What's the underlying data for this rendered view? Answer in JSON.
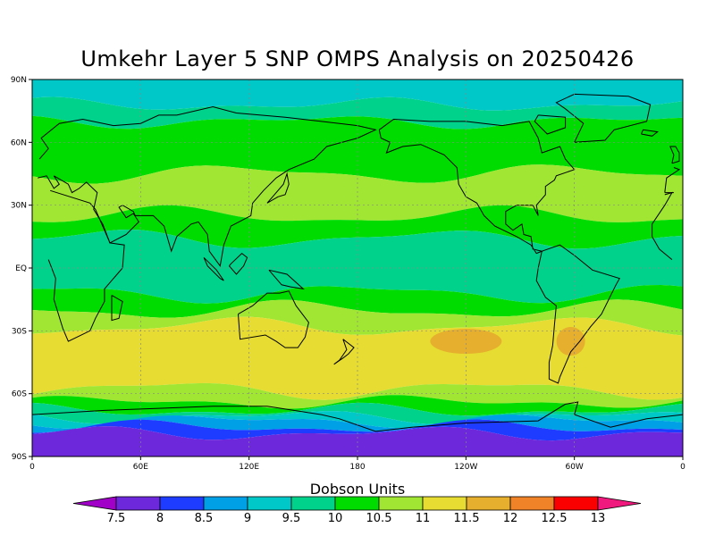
{
  "title": "Umkehr Layer 5 SNP OMPS Analysis on 20250426",
  "colorbar": {
    "title": "Dobson Units",
    "ticks": [
      "7.5",
      "8",
      "8.5",
      "9",
      "9.5",
      "10",
      "10.5",
      "11",
      "11.5",
      "12",
      "12.5",
      "13"
    ],
    "colors": [
      "#a000c8",
      "#6e28dc",
      "#1e3cff",
      "#00a0e6",
      "#00c8c8",
      "#00d28c",
      "#00dc00",
      "#a0e632",
      "#e6dc32",
      "#e6af2d",
      "#f08228",
      "#fa0000",
      "#f0197d"
    ]
  },
  "chart_data": {
    "type": "heatmap",
    "title": "Umkehr Layer 5 SNP OMPS Analysis on 20250426",
    "units": "Dobson Units",
    "x_ticks": [
      "0",
      "60E",
      "120E",
      "180",
      "120W",
      "60W",
      "0"
    ],
    "y_ticks": [
      "90N",
      "60N",
      "30N",
      "EQ",
      "30S",
      "60S",
      "90S"
    ],
    "xlim": [
      0,
      360
    ],
    "ylim": [
      -90,
      90
    ],
    "grid": true,
    "levels": [
      7.5,
      8,
      8.5,
      9,
      9.5,
      10,
      10.5,
      11,
      11.5,
      12,
      12.5,
      13
    ],
    "zonal_bands": [
      {
        "lat": [
          78,
          90
        ],
        "value": 9
      },
      {
        "lat": [
          70,
          78
        ],
        "value": 9.5
      },
      {
        "lat": [
          45,
          70
        ],
        "value": 10.25
      },
      {
        "lat": [
          25,
          45
        ],
        "value": 10.5
      },
      {
        "lat": [
          14,
          25
        ],
        "value": 10
      },
      {
        "lat": [
          -12,
          14
        ],
        "value": 9.5
      },
      {
        "lat": [
          -20,
          -12
        ],
        "value": 10.25
      },
      {
        "lat": [
          -28,
          -20
        ],
        "value": 10.75
      },
      {
        "lat": [
          -58,
          -28
        ],
        "value": 11.25
      },
      {
        "lat": [
          -64,
          -58
        ],
        "value": 10.75
      },
      {
        "lat": [
          -68,
          -64
        ],
        "value": 10.25
      },
      {
        "lat": [
          -71,
          -68
        ],
        "value": 9.75
      },
      {
        "lat": [
          -73,
          -71
        ],
        "value": 9.25
      },
      {
        "lat": [
          -76,
          -73
        ],
        "value": 8.75
      },
      {
        "lat": [
          -79,
          -76
        ],
        "value": 8.25
      },
      {
        "lat": [
          -90,
          -79
        ],
        "value": 7.75
      }
    ],
    "local_maxima": [
      {
        "lon": 240,
        "lat": -35,
        "value": 11.75
      },
      {
        "lon": 298,
        "lat": -35,
        "value": 11.75
      }
    ]
  }
}
